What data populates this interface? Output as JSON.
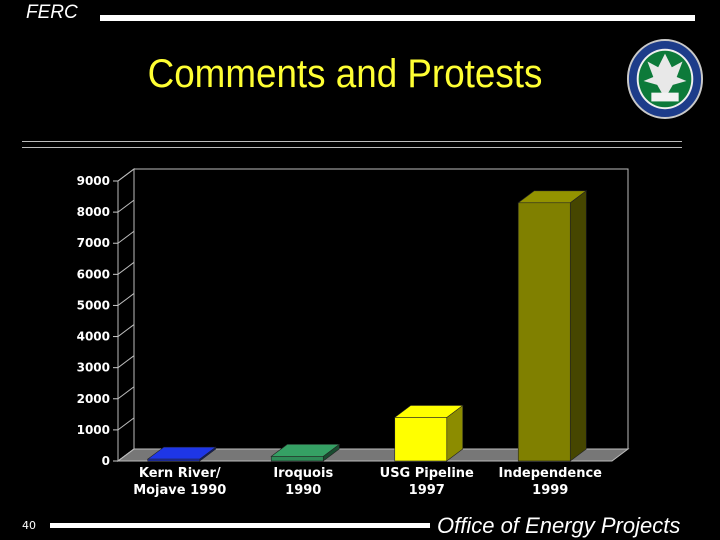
{
  "header": {
    "brand": "FERC",
    "title": "Comments and Protests"
  },
  "footer": {
    "page_number": "40",
    "office": "Office of Energy Projects"
  },
  "colors": {
    "title": "#ffff33",
    "background": "#000000"
  },
  "chart_data": {
    "type": "bar",
    "categories": [
      [
        "Kern River/",
        "Mojave 1990"
      ],
      [
        "Iroquois",
        "1990"
      ],
      [
        "USG Pipeline",
        "1997"
      ],
      [
        "Independence",
        "1999"
      ]
    ],
    "values": [
      60,
      150,
      1400,
      8300
    ],
    "bar_colors": [
      "#1a2fc8",
      "#2e8b57",
      "#ffff00",
      "#808000"
    ],
    "ylim": [
      0,
      9000
    ],
    "yticks": [
      0,
      1000,
      2000,
      3000,
      4000,
      5000,
      6000,
      7000,
      8000,
      9000
    ],
    "title": "",
    "xlabel": "",
    "ylabel": "",
    "style": "3d"
  }
}
